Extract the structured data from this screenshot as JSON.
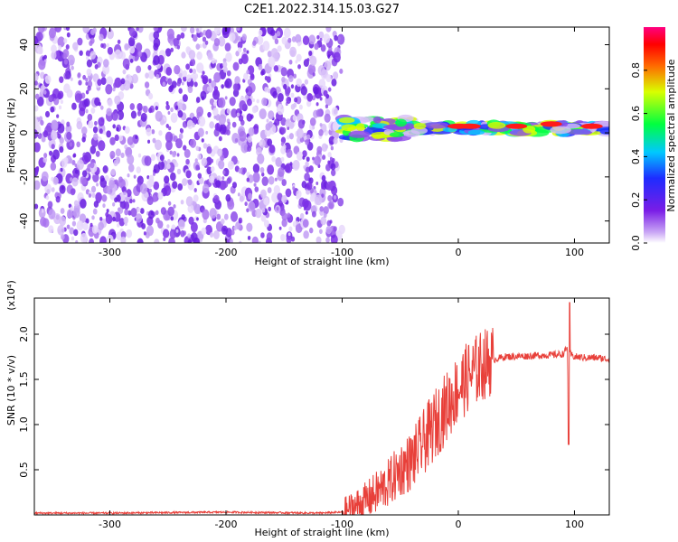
{
  "title": "C2E1.2022.314.15.03.G27",
  "chart_data": [
    {
      "type": "heatmap",
      "xlabel": "Height of straight line (km)",
      "ylabel": "Frequency (Hz)",
      "xlim": [
        -365,
        130
      ],
      "ylim": [
        -50,
        48
      ],
      "xticks": [
        -300,
        -200,
        -100,
        0,
        100
      ],
      "yticks": [
        -40,
        -20,
        0,
        20,
        40
      ],
      "colorbar": {
        "label": "Normalized spectral amplitude",
        "range": [
          0,
          1
        ],
        "ticks": [
          0.0,
          0.2,
          0.4,
          0.6,
          0.8
        ],
        "colormap": "rainbow (purple-blue-cyan-green-yellow-red-pink)"
      },
      "description_regions": [
        {
          "x_range": [
            -365,
            -100
          ],
          "y_range": [
            -50,
            48
          ],
          "amplitude": "low, scattered broadband noise (purple)"
        },
        {
          "x_range": [
            -100,
            130
          ],
          "y_center": 2,
          "y_halfwidth": 4,
          "amplitude": "high narrow-band signal near 0-5 Hz (cyan-red)"
        }
      ]
    },
    {
      "type": "line",
      "xlabel": "Height of straight line (km)",
      "ylabel": "SNR (10 * v/v)",
      "y_multiplier": "(x10⁴)",
      "xlim": [
        -365,
        130
      ],
      "ylim": [
        0,
        2.4
      ],
      "xticks": [
        -300,
        -200,
        -100,
        0,
        100
      ],
      "yticks": [
        0.5,
        1.0,
        1.5,
        2.0
      ],
      "series": [
        {
          "color": "#e8403a",
          "x": [
            -365,
            -300,
            -200,
            -120,
            -100,
            -80,
            -70,
            -60,
            -50,
            -40,
            -30,
            -20,
            -10,
            0,
            10,
            20,
            30,
            40,
            60,
            80,
            90,
            94,
            95,
            96,
            100,
            110,
            120,
            130
          ],
          "y": [
            0.02,
            0.02,
            0.03,
            0.02,
            0.03,
            0.15,
            0.25,
            0.35,
            0.5,
            0.6,
            0.8,
            1.0,
            1.2,
            1.4,
            1.55,
            1.65,
            1.72,
            1.75,
            1.76,
            1.77,
            1.78,
            1.85,
            0.8,
            1.78,
            1.75,
            1.74,
            1.74,
            1.72
          ]
        }
      ]
    }
  ]
}
